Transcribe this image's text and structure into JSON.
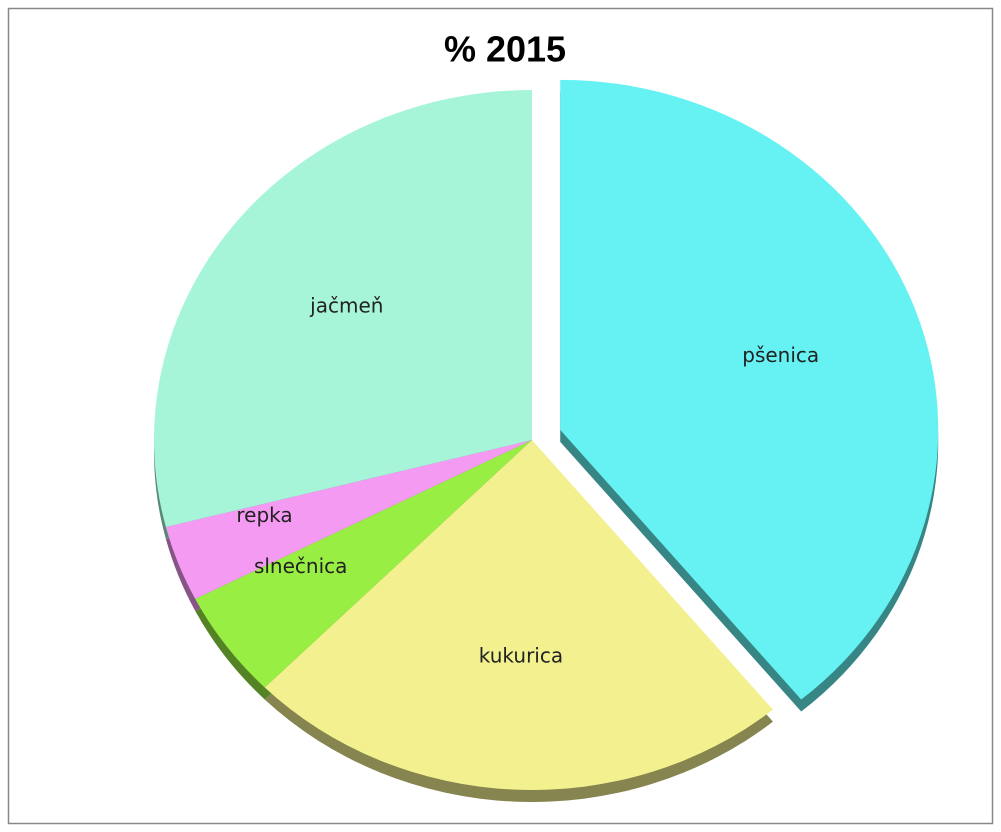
{
  "chart_data": {
    "type": "pie",
    "title": "% 2015",
    "categories": [
      "pšenica",
      "kukurica",
      "slnečnica",
      "repka",
      "jačmeň"
    ],
    "values": [
      39,
      23.5,
      5,
      3.5,
      29
    ],
    "colors": [
      "#66f2f2",
      "#f3f08f",
      "#99ee44",
      "#f49af2",
      "#a6f5d8"
    ],
    "exploded": [
      true,
      false,
      false,
      false,
      false
    ]
  }
}
